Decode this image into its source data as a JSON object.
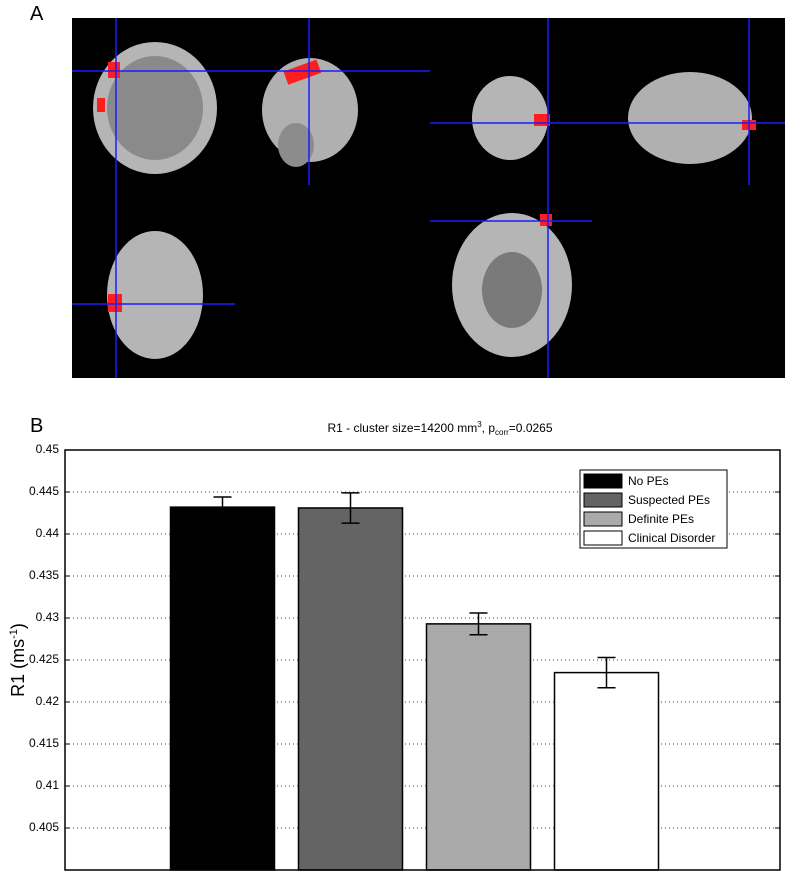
{
  "panel_a": {
    "label": "A"
  },
  "chart_data": {
    "type": "bar",
    "panel_label": "B",
    "title": {
      "main": "R1 - cluster size=14200 mm",
      "sup": "3",
      "mid": ", p",
      "sub": "corr",
      "end": "=0.0265"
    },
    "y_label": {
      "main": "R1 (ms",
      "sup": "-1",
      "end": ")"
    },
    "series": [
      {
        "name": "No PEs",
        "color": "#000000",
        "values": [
          0.4432
        ],
        "errors": [
          0.0012
        ]
      },
      {
        "name": "Suspected PEs",
        "color": "#646464",
        "values": [
          0.4431
        ],
        "errors": [
          0.0018
        ]
      },
      {
        "name": "Definite PEs",
        "color": "#aaaaaa",
        "values": [
          0.4293
        ],
        "errors": [
          0.0013
        ]
      },
      {
        "name": "Clinical Disorder",
        "color": "#ffffff",
        "values": [
          0.4235
        ],
        "errors": [
          0.0018
        ]
      }
    ],
    "ylim": [
      0.4,
      0.45
    ],
    "yticks": [
      0.405,
      0.41,
      0.415,
      0.42,
      0.425,
      0.43,
      0.435,
      0.44,
      0.445,
      0.45
    ],
    "grid": true,
    "legend": "upper right"
  }
}
